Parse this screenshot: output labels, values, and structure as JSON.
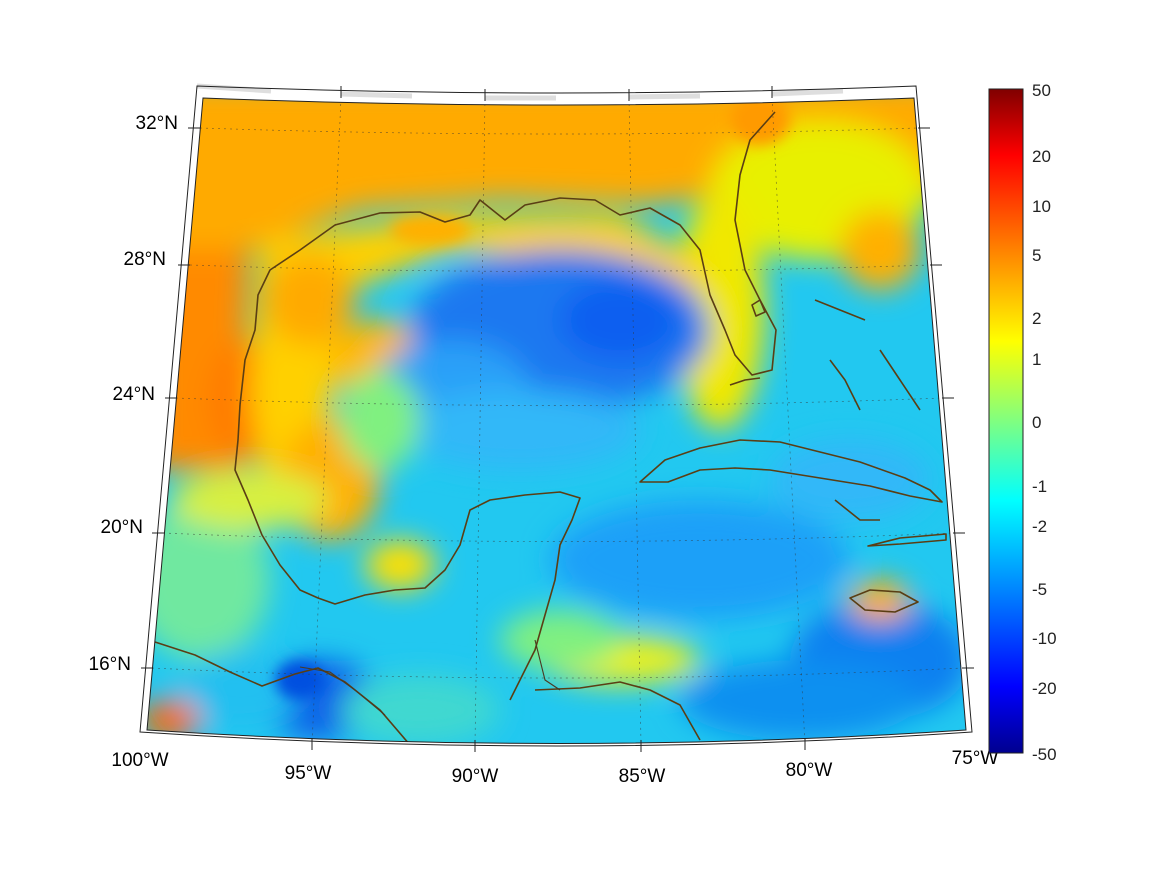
{
  "map": {
    "projection": "lambert-conic",
    "extent": {
      "lon": [
        -100,
        -75
      ],
      "lat": [
        14,
        33
      ]
    },
    "lon_ticks": [
      "100°W",
      "95°W",
      "90°W",
      "85°W",
      "80°W",
      "75°W"
    ],
    "lat_ticks": [
      "32°N",
      "28°N",
      "24°N",
      "20°N",
      "16°N"
    ],
    "coastline_color": "#5a3e14",
    "field_colormap": "jet"
  },
  "colorbar": {
    "scale": "symmetric-log",
    "range": [
      -50,
      50
    ],
    "ticks": [
      "50",
      "20",
      "10",
      "5",
      "2",
      "1",
      "0",
      "-1",
      "-2",
      "-5",
      "-10",
      "-20",
      "-50"
    ],
    "colors_top_to_bottom": [
      "#800000",
      "#ff0000",
      "#ff8000",
      "#ffff00",
      "#80ff80",
      "#00ffff",
      "#0080ff",
      "#0000ff",
      "#00008f"
    ]
  }
}
